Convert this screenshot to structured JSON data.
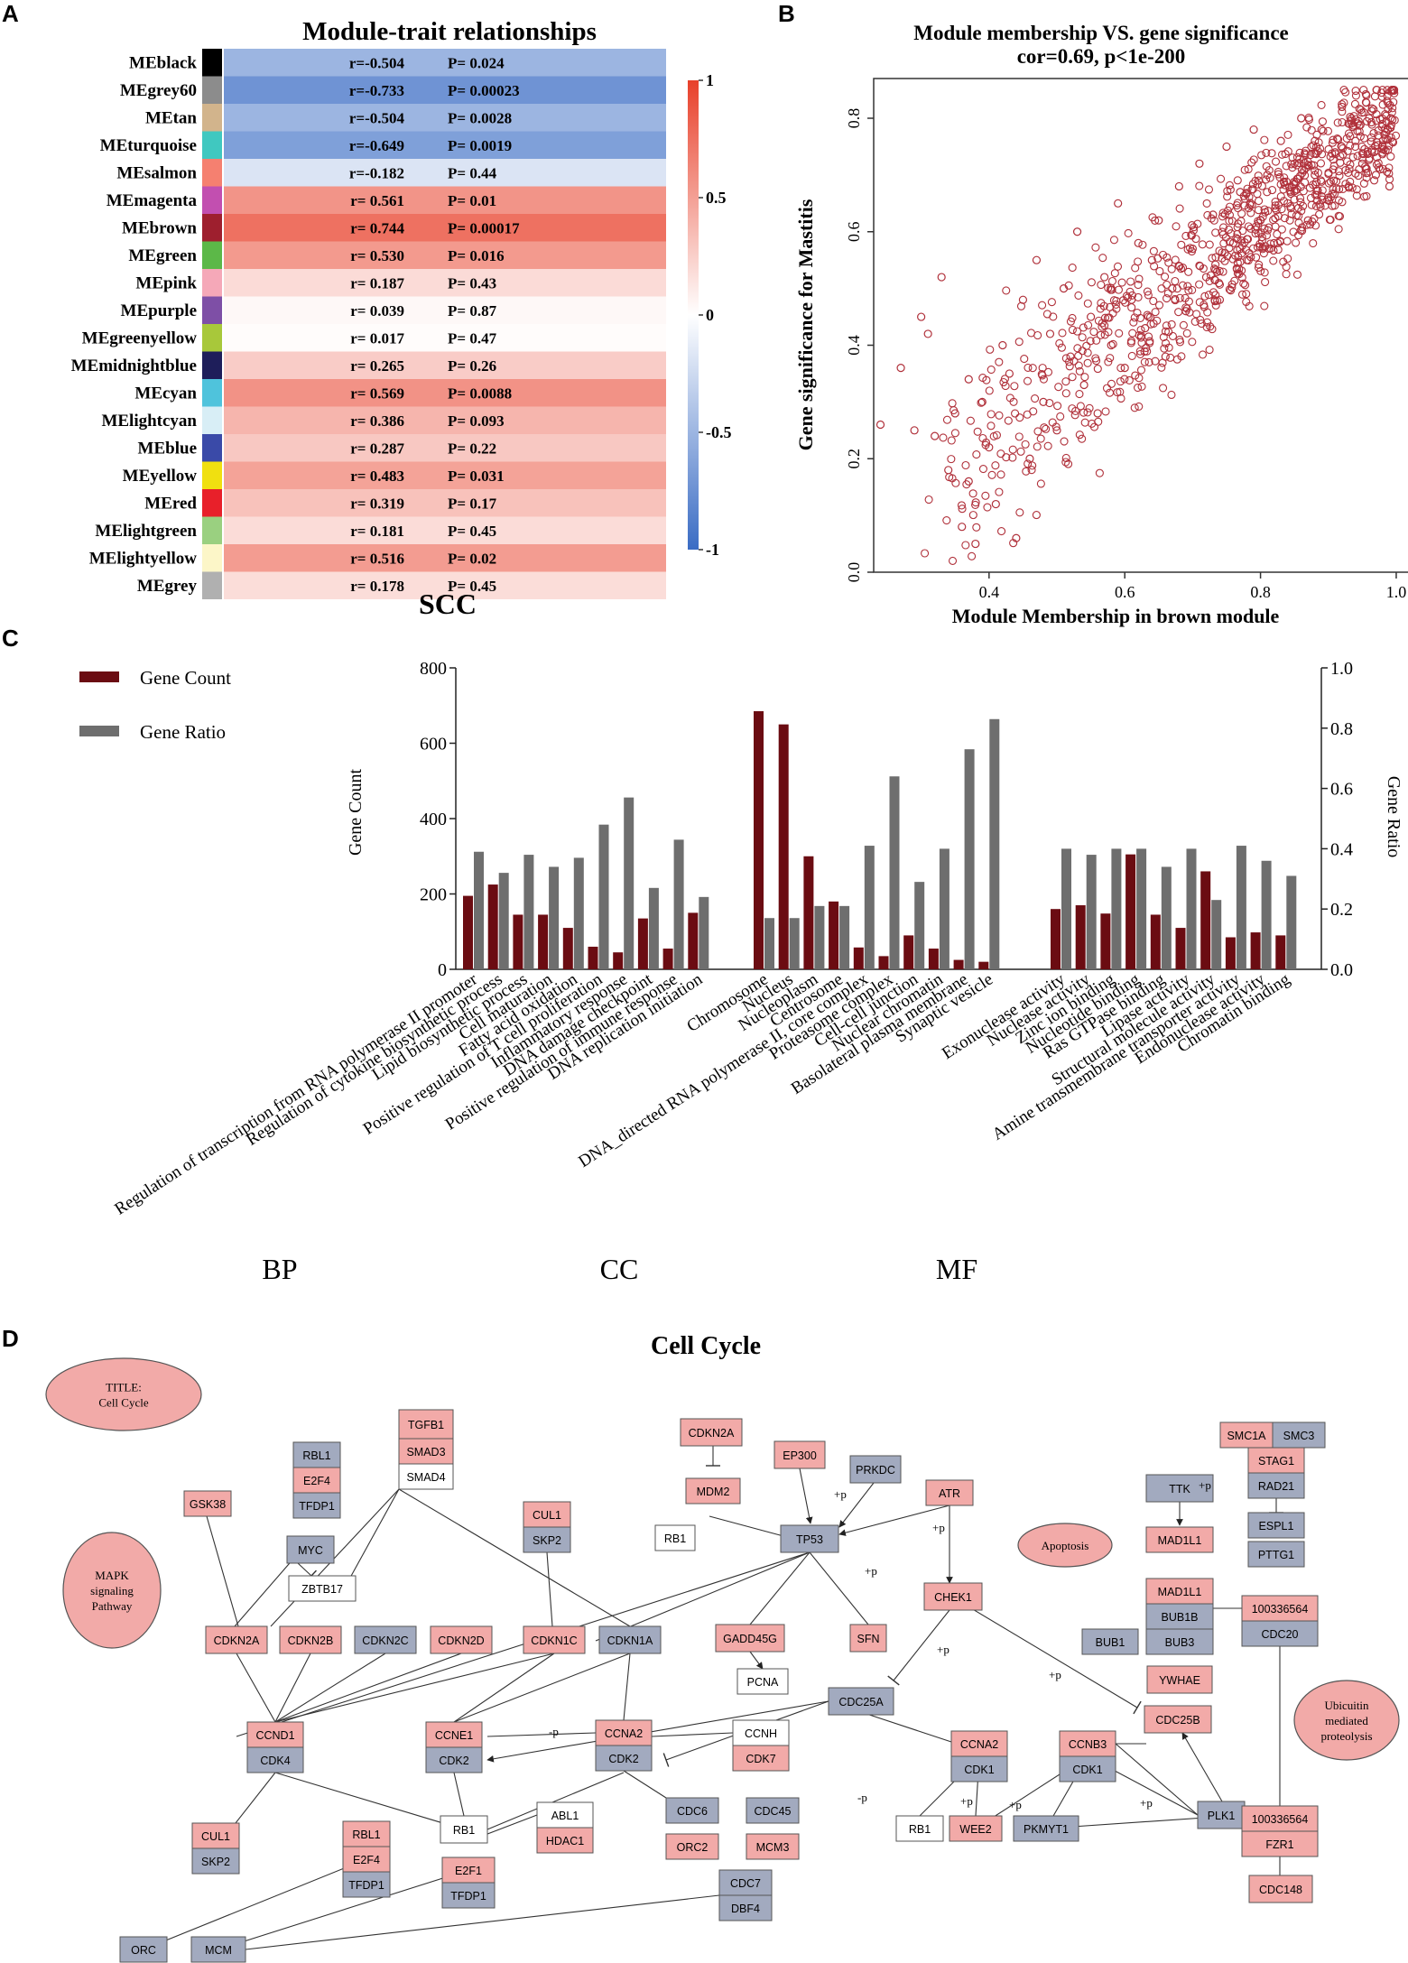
{
  "panels": {
    "a": {
      "letter": "A",
      "title": "Module-trait relationships",
      "xlabel": "SCC",
      "colorbar": [
        "1",
        "0.5",
        "0",
        "-0.5",
        "-1"
      ],
      "rows": [
        {
          "module": "MEblack",
          "swatch": "#000000",
          "r": "r=-0.504",
          "p": "P= 0.024",
          "value": -0.504
        },
        {
          "module": "MEgrey60",
          "swatch": "#8c8c8c",
          "r": "r=-0.733",
          "p": "P= 0.00023",
          "value": -0.733
        },
        {
          "module": "MEtan",
          "swatch": "#d2b48c",
          "r": "r=-0.504",
          "p": "P= 0.0028",
          "value": -0.504
        },
        {
          "module": "MEturquoise",
          "swatch": "#40c8c0",
          "r": "r=-0.649",
          "p": "P= 0.0019",
          "value": -0.649
        },
        {
          "module": "MEsalmon",
          "swatch": "#f58070",
          "r": "r=-0.182",
          "p": "P= 0.44",
          "value": -0.182
        },
        {
          "module": "MEmagenta",
          "swatch": "#c24fb0",
          "r": "r= 0.561",
          "p": "P= 0.01",
          "value": 0.561
        },
        {
          "module": "MEbrown",
          "swatch": "#9e1f2e",
          "r": "r= 0.744",
          "p": "P= 0.00017",
          "value": 0.744
        },
        {
          "module": "MEgreen",
          "swatch": "#5cb848",
          "r": "r= 0.530",
          "p": "P= 0.016",
          "value": 0.53
        },
        {
          "module": "MEpink",
          "swatch": "#f5a8b8",
          "r": "r= 0.187",
          "p": "P= 0.43",
          "value": 0.187
        },
        {
          "module": "MEpurple",
          "swatch": "#7e4fa6",
          "r": "r= 0.039",
          "p": "P= 0.87",
          "value": 0.039
        },
        {
          "module": "MEgreenyellow",
          "swatch": "#a8c83a",
          "r": "r= 0.017",
          "p": "P= 0.47",
          "value": 0.017
        },
        {
          "module": "MEmidnightblue",
          "swatch": "#1e1e5a",
          "r": "r= 0.265",
          "p": "P= 0.26",
          "value": 0.265
        },
        {
          "module": "MEcyan",
          "swatch": "#4fc3dc",
          "r": "r= 0.569",
          "p": "P= 0.0088",
          "value": 0.569
        },
        {
          "module": "MElightcyan",
          "swatch": "#d8eef6",
          "r": "r= 0.386",
          "p": "P= 0.093",
          "value": 0.386
        },
        {
          "module": "MEblue",
          "swatch": "#3a4aa8",
          "r": "r= 0.287",
          "p": "P= 0.22",
          "value": 0.287
        },
        {
          "module": "MEyellow",
          "swatch": "#f0e010",
          "r": "r= 0.483",
          "p": "P= 0.031",
          "value": 0.483
        },
        {
          "module": "MEred",
          "swatch": "#e8202a",
          "r": "r= 0.319",
          "p": "P= 0.17",
          "value": 0.319
        },
        {
          "module": "MElightgreen",
          "swatch": "#9ad080",
          "r": "r= 0.181",
          "p": "P= 0.45",
          "value": 0.181
        },
        {
          "module": "MElightyellow",
          "swatch": "#fcf6c8",
          "r": "r= 0.516",
          "p": "P= 0.02",
          "value": 0.516
        },
        {
          "module": "MEgrey",
          "swatch": "#b0b0b0",
          "r": "r= 0.178",
          "p": "P= 0.45",
          "value": 0.178
        }
      ]
    },
    "b": {
      "letter": "B",
      "title": "Module membership VS. gene significance",
      "subtitle": "cor=0.69, p<1e-200",
      "xlabel": "Module Membership in brown module",
      "ylabel": "Gene significance for Mastitis",
      "xticks": [
        "0.4",
        "0.6",
        "0.8",
        "1.0"
      ],
      "yticks": [
        "0.0",
        "0.2",
        "0.4",
        "0.6",
        "0.8"
      ]
    },
    "c": {
      "letter": "C",
      "legend_count": "Gene Count",
      "legend_ratio": "Gene Ratio",
      "ylabel_left": "Gene Count",
      "ylabel_right": "Gene Ratio",
      "left_ticks": [
        "0",
        "200",
        "400",
        "600",
        "800"
      ],
      "right_ticks": [
        "0.0",
        "0.2",
        "0.4",
        "0.6",
        "0.8",
        "1.0"
      ],
      "groups": [
        "BP",
        "CC",
        "MF"
      ]
    },
    "d": {
      "letter": "D",
      "title": "Cell Cycle",
      "title_oval": "TITLE:",
      "title_oval2": "Cell Cycle",
      "mapk1": "MAPK",
      "mapk2": "signaling",
      "mapk3": "Pathway",
      "apoptosis": "Apoptosis",
      "ubi1": "Ubicuitin",
      "ubi2": "mediated",
      "ubi3": "proteolysis",
      "nodes": [
        "RBL1",
        "E2F4",
        "TFDP1",
        "TGFB1",
        "SMAD3",
        "SMAD4",
        "GSK38",
        "MYC",
        "ZBTB17",
        "CDKN2A",
        "CDKN2B",
        "CDKN2C",
        "CDKN2D",
        "CUL1",
        "SKP2",
        "CDKN1C",
        "CDKN1A",
        "CDKN2A",
        "MDM2",
        "RB1",
        "EP300",
        "PRKDC",
        "TP53",
        "ATR",
        "GADD45G",
        "SFN",
        "PCNA",
        "CHEK1",
        "CDC25A",
        "CCND1",
        "CDK4",
        "CCNE1",
        "CDK2",
        "CCNA2",
        "CDK2",
        "CCNH",
        "CDK7",
        "RB1",
        "ABL1",
        "HDAC1",
        "CDC6",
        "CDC45",
        "ORC2",
        "MCM3",
        "CUL1",
        "SKP2",
        "RBL1",
        "E2F4",
        "TFDP1",
        "E2F1",
        "TFDP1",
        "CDC7",
        "DBF4",
        "ORC",
        "MCM",
        "CCNA2",
        "CDK1",
        "CCNB3",
        "CDK1",
        "RB1",
        "WEE2",
        "PKMYT1",
        "PLK1",
        "TTK",
        "MAD1L1",
        "MAD1L1",
        "BUB1B",
        "BUB3",
        "BUB1",
        "SMC1A",
        "SMC3",
        "STAG1",
        "RAD21",
        "ESPL1",
        "PTTG1",
        "100336564",
        "CDC20",
        "YWHAE",
        "CDC25B",
        "100336564",
        "FZR1",
        "CDC148"
      ],
      "edge_labels": [
        "+p",
        "+p",
        "+p",
        "+p",
        "+p",
        "-p",
        "-p",
        "+p",
        "+p",
        "+p",
        "+p"
      ]
    }
  },
  "chart_data": [
    {
      "type": "heatmap",
      "title": "Module-trait relationships",
      "xlabel": "SCC",
      "categories": [
        "MEblack",
        "MEgrey60",
        "MEtan",
        "MEturquoise",
        "MEsalmon",
        "MEmagenta",
        "MEbrown",
        "MEgreen",
        "MEpink",
        "MEpurple",
        "MEgreenyellow",
        "MEmidnightblue",
        "MEcyan",
        "MElightcyan",
        "MEblue",
        "MEyellow",
        "MEred",
        "MElightgreen",
        "MElightyellow",
        "MEgrey"
      ],
      "values": [
        -0.504,
        -0.733,
        -0.504,
        -0.649,
        -0.182,
        0.561,
        0.744,
        0.53,
        0.187,
        0.039,
        0.017,
        0.265,
        0.569,
        0.386,
        0.287,
        0.483,
        0.319,
        0.181,
        0.516,
        0.178
      ],
      "p_values": [
        0.024,
        0.00023,
        0.0028,
        0.0019,
        0.44,
        0.01,
        0.00017,
        0.016,
        0.43,
        0.87,
        0.47,
        0.26,
        0.0088,
        0.093,
        0.22,
        0.031,
        0.17,
        0.45,
        0.02,
        0.45
      ],
      "ylim": [
        -1,
        1
      ]
    },
    {
      "type": "scatter",
      "title": "Module membership VS. gene significance",
      "subtitle": "cor=0.69, p<1e-200",
      "xlabel": "Module Membership in brown module",
      "ylabel": "Gene significance for Mastitis",
      "xlim": [
        0.23,
        1.02
      ],
      "ylim": [
        0.0,
        0.87
      ],
      "color": "#b0303a",
      "x": [
        0.24,
        0.27,
        0.29,
        0.3,
        0.31,
        0.32,
        0.33,
        0.34,
        0.35,
        0.36,
        0.37,
        0.37,
        0.38,
        0.39,
        0.4,
        0.41,
        0.42,
        0.43,
        0.44,
        0.45,
        0.46,
        0.47,
        0.48,
        0.49,
        0.5,
        0.51,
        0.52,
        0.53,
        0.54,
        0.55,
        0.56,
        0.57,
        0.58,
        0.59,
        0.6,
        0.61,
        0.62,
        0.63,
        0.64,
        0.65,
        0.66,
        0.67,
        0.68,
        0.69,
        0.7,
        0.71,
        0.72,
        0.73,
        0.74,
        0.75,
        0.76,
        0.77,
        0.78,
        0.79,
        0.8,
        0.81,
        0.82,
        0.83,
        0.84,
        0.85,
        0.86,
        0.87,
        0.88,
        0.89,
        0.9,
        0.91,
        0.92,
        0.93,
        0.94,
        0.95,
        0.96,
        0.97,
        0.98,
        0.99
      ],
      "y": [
        0.26,
        0.36,
        0.25,
        0.45,
        0.42,
        0.24,
        0.52,
        0.18,
        0.28,
        0.08,
        0.16,
        0.34,
        0.05,
        0.3,
        0.22,
        0.12,
        0.4,
        0.35,
        0.06,
        0.48,
        0.2,
        0.55,
        0.3,
        0.42,
        0.25,
        0.5,
        0.38,
        0.6,
        0.33,
        0.45,
        0.28,
        0.52,
        0.4,
        0.65,
        0.36,
        0.48,
        0.58,
        0.43,
        0.55,
        0.62,
        0.38,
        0.5,
        0.68,
        0.46,
        0.57,
        0.72,
        0.52,
        0.63,
        0.48,
        0.75,
        0.58,
        0.67,
        0.55,
        0.78,
        0.62,
        0.7,
        0.58,
        0.76,
        0.65,
        0.72,
        0.8,
        0.62,
        0.7,
        0.78,
        0.66,
        0.74,
        0.82,
        0.68,
        0.76,
        0.72,
        0.8,
        0.7,
        0.75,
        0.68
      ]
    },
    {
      "type": "bar",
      "title": "",
      "ylabel": "Gene Count",
      "ylabel_right": "Gene Ratio",
      "ylim": [
        0,
        800
      ],
      "ylim_right": [
        0,
        1.0
      ],
      "groups": [
        {
          "name": "BP",
          "categories": [
            "Regulation of transcription from RNA polymerase II promoter",
            "Regulation of cytokine biosynthetic process",
            "Lipid biosynthetic process",
            "Cell maturation",
            "Fatty acid oxidation",
            "Positive regulation of T cell proliferation",
            "Inflammatory response",
            "DNA damage checkpoint",
            "Positive regulation of immune response",
            "DNA replication initiation"
          ]
        },
        {
          "name": "CC",
          "categories": [
            "Chromosome",
            "Nucleus",
            "Nucleoplasm",
            "Centrosome",
            "DNA_directed RNA polymerase II, core complex",
            "Proteasome complex",
            "Cell-cell junction",
            "Nuclear chromatin",
            "Basolateral plasma membrane",
            "Synaptic vesicle"
          ]
        },
        {
          "name": "MF",
          "categories": [
            "Exonuclease activity",
            "Nuclease activity",
            "Zinc ion binding",
            "Nucleotide binding",
            "Ras GTPase binding",
            "Lipase activity",
            "Structural molecule activity",
            "Amine transmembrane transporter activity",
            "Endonuclease activity",
            "Chromatin binding"
          ]
        }
      ],
      "series": [
        {
          "name": "Gene Count",
          "color": "#6b0c12",
          "values": [
            195,
            225,
            145,
            145,
            110,
            60,
            45,
            135,
            55,
            150,
            685,
            650,
            300,
            180,
            58,
            35,
            90,
            55,
            25,
            20,
            160,
            170,
            148,
            305,
            145,
            110,
            260,
            85,
            98,
            90
          ]
        },
        {
          "name": "Gene Ratio",
          "color": "#6e6e6e",
          "values": [
            0.39,
            0.32,
            0.38,
            0.34,
            0.37,
            0.48,
            0.57,
            0.27,
            0.43,
            0.24,
            0.17,
            0.17,
            0.21,
            0.21,
            0.41,
            0.64,
            0.29,
            0.4,
            0.73,
            0.83,
            0.4,
            0.38,
            0.4,
            0.4,
            0.34,
            0.4,
            0.23,
            0.41,
            0.36,
            0.31
          ]
        }
      ]
    }
  ]
}
